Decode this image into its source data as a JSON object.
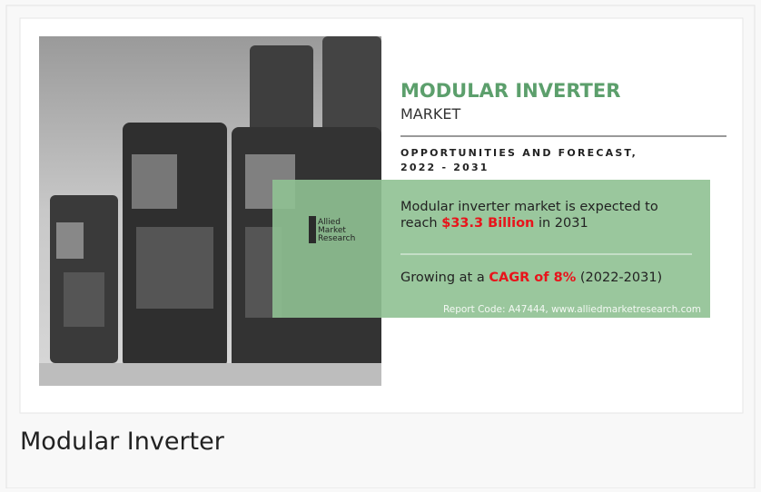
{
  "infographic": {
    "title": "MODULAR INVERTER",
    "subtitle": "MARKET",
    "forecast": [
      "OPPORTUNITIES AND FORECAST,",
      "2022 - 2031"
    ],
    "logo": [
      "Allied",
      "Market",
      "Research"
    ],
    "statement": {
      "line1": "Modular inverter market is expected to",
      "pre": "reach",
      "highlight": "$33.3 Billion",
      "post": "in 2031"
    },
    "growth": {
      "pre": "Growing at a",
      "highlight": "CAGR of 8%",
      "post": "(2022-2031)"
    },
    "report_code": "Report Code: A47444, www.alliedmarketresearch.com"
  },
  "caption": "Modular Inverter"
}
